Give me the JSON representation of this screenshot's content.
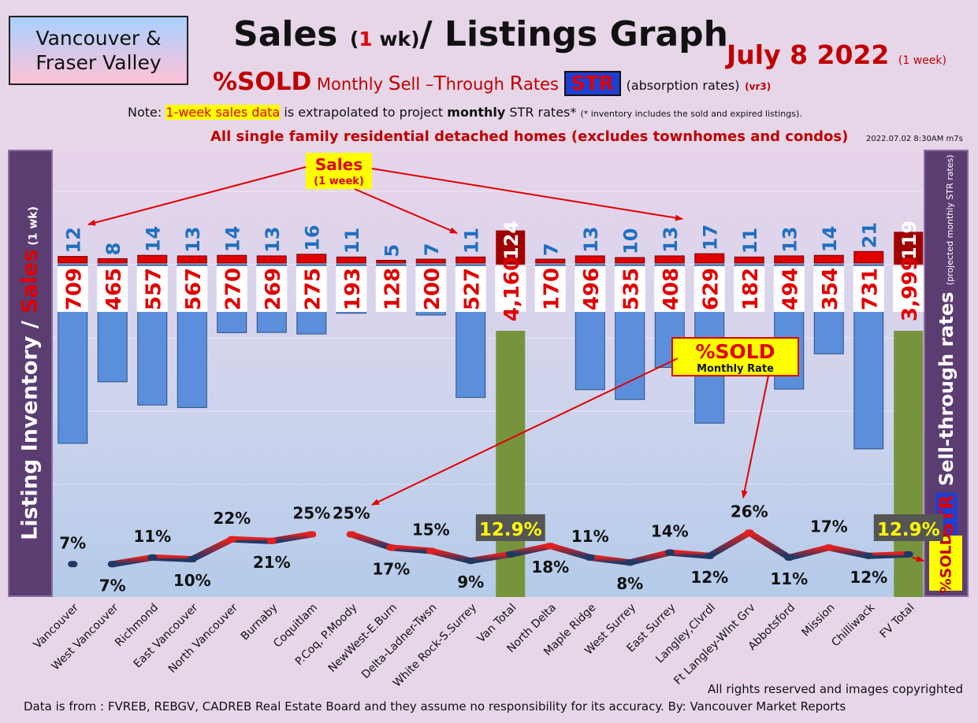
{
  "header": {
    "region_line1": "Vancouver &",
    "region_line2": "Fraser Valley",
    "title_main": "Sales",
    "title_open": "(",
    "title_num": "1",
    "title_wk": " wk)",
    "title_rest": "/ Listings Graph",
    "date": "July 8  2022",
    "date_note": "(1 week)",
    "sub_pct": "%SOLD",
    "sub_m": "Monthly ",
    "sub_s": "S",
    "sub_ell": "ell –",
    "sub_t": "T",
    "sub_hrough": "hrough ",
    "sub_r": "R",
    "sub_ates": "ates ",
    "sub_str": "STR",
    "sub_abs": "(absorption rates)",
    "sub_vr": "(vr3)",
    "note_pre": "Note: ",
    "note_hl": "1-week sales data",
    "note_mid": " is extrapolated to project ",
    "note_bold": "monthly",
    "note_post": " STR rates* ",
    "note_small": "(* inventory includes the sold and expired listings).",
    "all_sf": "All single family residential detached homes (excludes townhomes and condos)",
    "timestamp": "2022.07.02 8:30AM m7s"
  },
  "side_labels": {
    "left_a": "Listing Inventory ",
    "left_slash": "/ ",
    "left_b": "Sales",
    "left_c": " (1 wk)",
    "right_str": "STR",
    "right_a": " Sell-through rates ",
    "right_b": "(projected monthly STR rates)",
    "sold_box": "%SOLD"
  },
  "chart_data": {
    "type": "bar",
    "categories": [
      "Vancouver",
      "West Vancouver",
      "Richmond",
      "East Vancouver",
      "North Vancouver",
      "Burnaby",
      "Coquitlam",
      "P.Coq, P.Moody",
      "NewWest-E.Burn",
      "Delta-Ladner-Twsn",
      "White Rock-S.Surrey",
      "Van Total",
      "North Delta",
      "Maple Ridge",
      "West Surrey",
      "East Surrey",
      "Langley,Clvrdl",
      "Ft Langley-Wlnt Grv",
      "Abbotsford",
      "Mission",
      "Chilliwack",
      "FV Total"
    ],
    "series": [
      {
        "name": "Sales",
        "values": [
          12,
          8,
          14,
          13,
          14,
          13,
          16,
          11,
          5,
          7,
          11,
          124,
          7,
          13,
          10,
          13,
          17,
          11,
          13,
          14,
          21,
          119
        ]
      },
      {
        "values": [
          709,
          465,
          557,
          567,
          270,
          269,
          275,
          193,
          128,
          200,
          527,
          4160,
          170,
          496,
          535,
          408,
          629,
          182,
          494,
          354,
          731,
          3999
        ]
      },
      {
        "name": "%SOLD",
        "values": [
          7,
          7,
          11,
          10,
          22,
          21,
          25,
          25,
          17,
          15,
          9,
          12.9,
          18,
          11,
          8,
          14,
          12,
          26,
          11,
          17,
          12,
          12.9
        ]
      }
    ],
    "listing_labels": [
      "709",
      "465",
      "557",
      "567",
      "270",
      "269",
      "275",
      "193",
      "128",
      "200",
      "527",
      "4,160",
      "170",
      "496",
      "535",
      "408",
      "629",
      "182",
      "494",
      "354",
      "731",
      "3,999"
    ],
    "pct_labels": [
      "7%",
      "7%",
      "11%",
      "10%",
      "22%",
      "21%",
      "25%",
      "25%",
      "17%",
      "15%",
      "9%",
      "12.9%",
      "18%",
      "11%",
      "8%",
      "14%",
      "12%",
      "26%",
      "11%",
      "17%",
      "12%",
      "12.9%"
    ],
    "totals": [
      "Van Total",
      "FV Total"
    ],
    "annotations": {
      "sales_title": "Sales",
      "sales_sub": "(1 week)",
      "sold_title": "%SOLD",
      "sold_sub": "Monthly Rate"
    },
    "grid": true,
    "legend": "none",
    "colors": {
      "listing_bar": "#5b8fdb",
      "total_bar": "#77933c",
      "sales_bar": "#e00000",
      "total_sales_bar": "#a00000",
      "sales_text": "#1f6fbf",
      "listing_text": "#e00000",
      "line_high": "#e02020",
      "line_low": "#1f3864"
    }
  },
  "footer": {
    "rights": "All rights reserved and  images copyrighted",
    "source": "Data is from : FVREB, REBGV, CADREB Real Estate Board and they assume no responsibility for its accuracy. By: Vancouver Market Reports"
  }
}
